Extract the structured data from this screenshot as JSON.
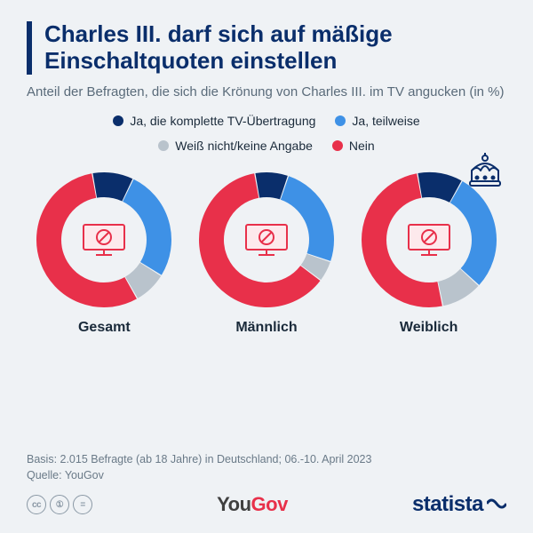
{
  "colors": {
    "background": "#eff2f5",
    "title": "#0a2e6b",
    "subtitle": "#5a6b7a",
    "accent_bar": "#0a2e6b",
    "label_text": "#1a2a3a",
    "footer_text": "#6a7a88",
    "tv_stroke": "#e8304a",
    "tv_fill": "#fde9ec"
  },
  "title": "Charles III. darf sich auf mäßige Einschaltquoten einstellen",
  "subtitle": "Anteil der Befragten, die sich die Krönung von Charles III. im TV angucken (in %)",
  "legend": [
    {
      "label": "Ja, die komplette TV-Übertragung",
      "color": "#0a2e6b"
    },
    {
      "label": "Ja, teilweise",
      "color": "#3e91e6"
    },
    {
      "label": "Weiß nicht/keine Angabe",
      "color": "#b9c3cc"
    },
    {
      "label": "Nein",
      "color": "#e8304a"
    }
  ],
  "donut": {
    "size": 160,
    "radius": 62,
    "stroke_width": 28,
    "start_angle_deg": -10,
    "gap_deg": 1,
    "label_radius": 62,
    "label_fontsize": 15
  },
  "charts": [
    {
      "label": "Gesamt",
      "has_crown": false,
      "segments": [
        {
          "value": 10,
          "color": "#0a2e6b"
        },
        {
          "value": 27,
          "color": "#3e91e6"
        },
        {
          "value": 8,
          "color": "#b9c3cc"
        },
        {
          "value": 56,
          "color": "#e8304a"
        }
      ]
    },
    {
      "label": "Männlich",
      "has_crown": false,
      "segments": [
        {
          "value": 8,
          "color": "#0a2e6b"
        },
        {
          "value": 25,
          "color": "#3e91e6"
        },
        {
          "value": 5,
          "color": "#b9c3cc"
        },
        {
          "value": 62,
          "color": "#e8304a"
        }
      ]
    },
    {
      "label": "Weiblich",
      "has_crown": true,
      "segments": [
        {
          "value": 11,
          "color": "#0a2e6b"
        },
        {
          "value": 29,
          "color": "#3e91e6"
        },
        {
          "value": 10,
          "color": "#b9c3cc"
        },
        {
          "value": 51,
          "color": "#e8304a"
        }
      ]
    }
  ],
  "footer": {
    "basis": "Basis: 2.015 Befragte (ab 18 Jahre) in Deutschland; 06.-10. April 2023",
    "quelle": "Quelle: YouGov",
    "cc_badges": [
      "cc",
      "①",
      "="
    ],
    "logo_yougov": {
      "you": "You",
      "gov": "Gov"
    },
    "logo_statista": "statista"
  }
}
